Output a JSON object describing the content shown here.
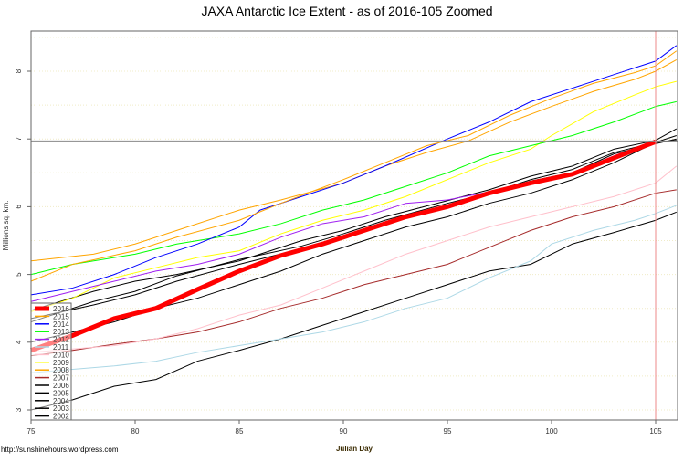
{
  "chart_data": {
    "type": "line",
    "title": "JAXA Antarctic Ice Extent - as of 2016-105 Zoomed",
    "xlabel": "Julian Day",
    "ylabel": "Millions sq. km.",
    "xlim": [
      75,
      106
    ],
    "ylim": [
      2.85,
      8.6
    ],
    "xticks": [
      75,
      80,
      85,
      90,
      95,
      100,
      105
    ],
    "yticks": [
      3,
      4,
      5,
      6,
      7,
      8
    ],
    "grid": "dotted horizontal at half units",
    "reference_lines": {
      "horizontal": 6.97,
      "vertical": 105
    },
    "legend_placement": "bottom-left",
    "footer": "http://sunshinehours.wordpress.com",
    "series": [
      {
        "name": "2016",
        "color": "#ff0000",
        "points": [
          [
            75,
            3.88
          ],
          [
            77,
            4.1
          ],
          [
            79,
            4.35
          ],
          [
            81,
            4.5
          ],
          [
            83,
            4.78
          ],
          [
            85,
            5.05
          ],
          [
            87,
            5.28
          ],
          [
            89,
            5.45
          ],
          [
            91,
            5.65
          ],
          [
            93,
            5.85
          ],
          [
            95,
            6.0
          ],
          [
            97,
            6.2
          ],
          [
            99,
            6.35
          ],
          [
            101,
            6.48
          ],
          [
            103,
            6.72
          ],
          [
            105,
            6.96
          ]
        ]
      },
      {
        "name": "2015",
        "color": "#ffa500",
        "points": [
          [
            75,
            4.9
          ],
          [
            77,
            5.15
          ],
          [
            80,
            5.35
          ],
          [
            82,
            5.55
          ],
          [
            85,
            5.8
          ],
          [
            87,
            6.05
          ],
          [
            90,
            6.4
          ],
          [
            92,
            6.65
          ],
          [
            94,
            6.9
          ],
          [
            96,
            7.05
          ],
          [
            98,
            7.35
          ],
          [
            100,
            7.6
          ],
          [
            102,
            7.82
          ],
          [
            104,
            7.98
          ],
          [
            105,
            8.08
          ],
          [
            106,
            8.3
          ]
        ]
      },
      {
        "name": "2014",
        "color": "#0000ff",
        "points": [
          [
            75,
            4.7
          ],
          [
            77,
            4.8
          ],
          [
            79,
            5.0
          ],
          [
            81,
            5.25
          ],
          [
            83,
            5.45
          ],
          [
            85,
            5.7
          ],
          [
            86,
            5.95
          ],
          [
            88,
            6.15
          ],
          [
            90,
            6.35
          ],
          [
            92,
            6.6
          ],
          [
            95,
            7.0
          ],
          [
            97,
            7.25
          ],
          [
            99,
            7.55
          ],
          [
            101,
            7.75
          ],
          [
            103,
            7.95
          ],
          [
            105,
            8.15
          ],
          [
            106,
            8.38
          ]
        ]
      },
      {
        "name": "2013",
        "color": "#00ff00",
        "points": [
          [
            75,
            5.0
          ],
          [
            77,
            5.15
          ],
          [
            80,
            5.3
          ],
          [
            82,
            5.45
          ],
          [
            85,
            5.6
          ],
          [
            87,
            5.75
          ],
          [
            89,
            5.95
          ],
          [
            91,
            6.1
          ],
          [
            93,
            6.3
          ],
          [
            95,
            6.5
          ],
          [
            97,
            6.75
          ],
          [
            99,
            6.9
          ],
          [
            101,
            7.05
          ],
          [
            103,
            7.25
          ],
          [
            105,
            7.48
          ],
          [
            106,
            7.55
          ]
        ]
      },
      {
        "name": "2012",
        "color": "#a020f0",
        "points": [
          [
            75,
            4.6
          ],
          [
            77,
            4.75
          ],
          [
            79,
            4.9
          ],
          [
            81,
            5.05
          ],
          [
            83,
            5.15
          ],
          [
            85,
            5.3
          ],
          [
            87,
            5.55
          ],
          [
            89,
            5.75
          ],
          [
            91,
            5.85
          ],
          [
            93,
            6.05
          ],
          [
            95,
            6.1
          ],
          [
            97,
            6.22
          ],
          [
            99,
            6.35
          ],
          [
            101,
            6.5
          ],
          [
            103,
            6.75
          ],
          [
            105,
            6.98
          ]
        ]
      },
      {
        "name": "2011",
        "color": "#add8e6",
        "points": [
          [
            75,
            3.55
          ],
          [
            77,
            3.6
          ],
          [
            79,
            3.65
          ],
          [
            81,
            3.72
          ],
          [
            83,
            3.85
          ],
          [
            85,
            3.95
          ],
          [
            87,
            4.05
          ],
          [
            89,
            4.15
          ],
          [
            91,
            4.3
          ],
          [
            93,
            4.5
          ],
          [
            95,
            4.65
          ],
          [
            97,
            4.95
          ],
          [
            99,
            5.2
          ],
          [
            100,
            5.45
          ],
          [
            102,
            5.65
          ],
          [
            104,
            5.8
          ],
          [
            105,
            5.9
          ],
          [
            106,
            6.02
          ]
        ]
      },
      {
        "name": "2010",
        "color": "#ffc0cb",
        "points": [
          [
            75,
            3.85
          ],
          [
            77,
            3.9
          ],
          [
            79,
            3.95
          ],
          [
            81,
            4.05
          ],
          [
            83,
            4.2
          ],
          [
            85,
            4.4
          ],
          [
            87,
            4.55
          ],
          [
            89,
            4.8
          ],
          [
            91,
            5.05
          ],
          [
            93,
            5.3
          ],
          [
            95,
            5.5
          ],
          [
            97,
            5.7
          ],
          [
            99,
            5.85
          ],
          [
            101,
            6.0
          ],
          [
            103,
            6.15
          ],
          [
            105,
            6.35
          ],
          [
            106,
            6.6
          ]
        ]
      },
      {
        "name": "2009",
        "color": "#ffff00",
        "points": [
          [
            75,
            4.45
          ],
          [
            77,
            4.65
          ],
          [
            79,
            4.95
          ],
          [
            81,
            5.1
          ],
          [
            83,
            5.25
          ],
          [
            85,
            5.35
          ],
          [
            87,
            5.6
          ],
          [
            89,
            5.8
          ],
          [
            91,
            5.95
          ],
          [
            93,
            6.15
          ],
          [
            95,
            6.4
          ],
          [
            97,
            6.65
          ],
          [
            99,
            6.85
          ],
          [
            100,
            7.05
          ],
          [
            102,
            7.4
          ],
          [
            104,
            7.65
          ],
          [
            105,
            7.77
          ],
          [
            106,
            7.85
          ]
        ]
      },
      {
        "name": "2008",
        "color": "#ffa500",
        "points": [
          [
            75,
            5.2
          ],
          [
            78,
            5.3
          ],
          [
            80,
            5.45
          ],
          [
            82,
            5.65
          ],
          [
            85,
            5.95
          ],
          [
            87,
            6.1
          ],
          [
            90,
            6.35
          ],
          [
            92,
            6.6
          ],
          [
            94,
            6.8
          ],
          [
            96,
            6.97
          ],
          [
            98,
            7.25
          ],
          [
            100,
            7.48
          ],
          [
            102,
            7.7
          ],
          [
            104,
            7.88
          ],
          [
            105,
            8.0
          ],
          [
            106,
            8.17
          ]
        ]
      },
      {
        "name": "2007",
        "color": "#a52a2a",
        "points": [
          [
            75,
            3.8
          ],
          [
            77,
            3.88
          ],
          [
            79,
            3.97
          ],
          [
            81,
            4.05
          ],
          [
            83,
            4.15
          ],
          [
            85,
            4.3
          ],
          [
            87,
            4.5
          ],
          [
            89,
            4.65
          ],
          [
            91,
            4.85
          ],
          [
            93,
            5.0
          ],
          [
            95,
            5.15
          ],
          [
            97,
            5.4
          ],
          [
            99,
            5.65
          ],
          [
            101,
            5.85
          ],
          [
            103,
            6.0
          ],
          [
            105,
            6.2
          ],
          [
            106,
            6.25
          ]
        ]
      },
      {
        "name": "2006",
        "color": "#000000",
        "points": [
          [
            75,
            4.47
          ],
          [
            78,
            4.75
          ],
          [
            80,
            4.9
          ],
          [
            82,
            5.0
          ],
          [
            85,
            5.2
          ],
          [
            88,
            5.5
          ],
          [
            90,
            5.65
          ],
          [
            92,
            5.85
          ],
          [
            95,
            6.09
          ],
          [
            97,
            6.25
          ],
          [
            99,
            6.45
          ],
          [
            101,
            6.6
          ],
          [
            103,
            6.85
          ],
          [
            105,
            6.98
          ],
          [
            106,
            7.15
          ]
        ]
      },
      {
        "name": "2005",
        "color": "#000000",
        "points": [
          [
            75,
            4.3
          ],
          [
            78,
            4.6
          ],
          [
            80,
            4.75
          ],
          [
            82,
            4.98
          ],
          [
            85,
            5.22
          ],
          [
            88,
            5.42
          ],
          [
            90,
            5.6
          ],
          [
            92,
            5.8
          ],
          [
            95,
            6.05
          ],
          [
            97,
            6.2
          ],
          [
            99,
            6.4
          ],
          [
            101,
            6.55
          ],
          [
            103,
            6.8
          ],
          [
            105,
            6.95
          ],
          [
            106,
            7.05
          ]
        ]
      },
      {
        "name": "2004",
        "color": "#000000",
        "points": [
          [
            75,
            4.35
          ],
          [
            78,
            4.55
          ],
          [
            80,
            4.7
          ],
          [
            82,
            4.9
          ],
          [
            85,
            5.15
          ],
          [
            88,
            5.38
          ],
          [
            90,
            5.55
          ],
          [
            92,
            5.75
          ],
          [
            95,
            6.0
          ],
          [
            97,
            6.18
          ],
          [
            99,
            6.38
          ],
          [
            101,
            6.5
          ],
          [
            103,
            6.78
          ],
          [
            105,
            6.93
          ],
          [
            106,
            7.0
          ]
        ]
      },
      {
        "name": "2003",
        "color": "#000000",
        "points": [
          [
            75,
            4.0
          ],
          [
            77,
            4.15
          ],
          [
            79,
            4.3
          ],
          [
            81,
            4.5
          ],
          [
            83,
            4.65
          ],
          [
            85,
            4.85
          ],
          [
            87,
            5.05
          ],
          [
            89,
            5.3
          ],
          [
            91,
            5.5
          ],
          [
            93,
            5.7
          ],
          [
            95,
            5.85
          ],
          [
            97,
            6.05
          ],
          [
            99,
            6.2
          ],
          [
            101,
            6.4
          ],
          [
            103,
            6.65
          ],
          [
            105,
            6.95
          ],
          [
            106,
            6.98
          ]
        ]
      },
      {
        "name": "2002",
        "color": "#000000",
        "points": [
          [
            75,
            3.0
          ],
          [
            77,
            3.15
          ],
          [
            79,
            3.35
          ],
          [
            81,
            3.45
          ],
          [
            83,
            3.72
          ],
          [
            85,
            3.88
          ],
          [
            87,
            4.05
          ],
          [
            89,
            4.25
          ],
          [
            91,
            4.45
          ],
          [
            93,
            4.65
          ],
          [
            95,
            4.85
          ],
          [
            97,
            5.05
          ],
          [
            99,
            5.15
          ],
          [
            101,
            5.45
          ],
          [
            103,
            5.62
          ],
          [
            105,
            5.8
          ],
          [
            106,
            5.92
          ]
        ]
      }
    ]
  }
}
